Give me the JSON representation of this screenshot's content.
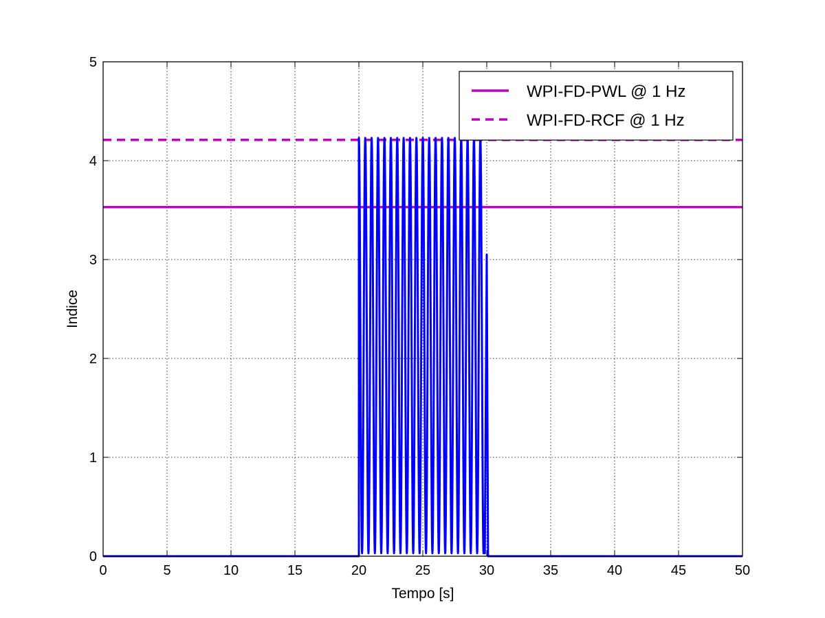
{
  "chart_data": {
    "type": "line",
    "title": "",
    "xlabel": "Tempo [s]",
    "ylabel": "Indice",
    "xlim": [
      0,
      50
    ],
    "ylim": [
      0,
      5
    ],
    "xticks": [
      0,
      5,
      10,
      15,
      20,
      25,
      30,
      35,
      40,
      45,
      50
    ],
    "yticks": [
      0,
      1,
      2,
      3,
      4,
      5
    ],
    "grid": true,
    "legend_position": "top-right",
    "series": [
      {
        "name": "WPI-FD-PWL @ 1 Hz",
        "style": "solid",
        "color": "#bf00bf",
        "constant_y": 3.53
      },
      {
        "name": "WPI-FD-RCF @ 1 Hz",
        "style": "dashed",
        "color": "#bf00bf",
        "constant_y": 4.21
      },
      {
        "name": "",
        "style": "solid",
        "color": "#0000ff",
        "description": "oscillating index signal",
        "zero_before": 20.0,
        "oscillation_start": 20.0,
        "oscillation_end": 29.8,
        "oscillation_frequency_hz": 2,
        "oscillation_min": 0.03,
        "oscillation_max": 4.23,
        "final_peak_time": 30.0,
        "final_peak_value": 3.05,
        "zero_after": 30.1
      }
    ]
  }
}
